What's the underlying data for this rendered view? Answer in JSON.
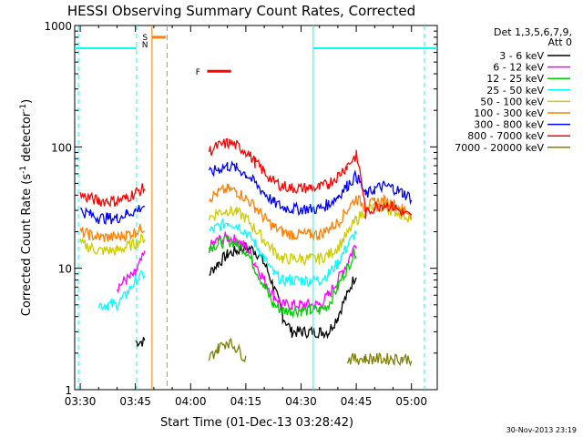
{
  "chart_data": {
    "type": "line",
    "title": "HESSI Observing Summary Count Rates, Corrected",
    "xlabel": "Start Time (01-Dec-13 03:28:42)",
    "ylabel_main": "Corrected Count Rate (s",
    "ylabel_sup1": "-1",
    "ylabel_mid": " detector",
    "ylabel_sup2": "-1",
    "ylabel_end": ")",
    "y_scale": "log",
    "ylim": [
      1,
      1000
    ],
    "xlim_minutes": [
      -1.5,
      97
    ],
    "x_tick_labels": [
      "03:30",
      "03:45",
      "04:00",
      "04:15",
      "04:30",
      "04:45",
      "05:00"
    ],
    "y_tick_labels": [
      "1",
      "10",
      "100",
      "1000"
    ],
    "legend_header": [
      "Det 1,3,5,6,7,9,",
      "Att 0"
    ],
    "legend_placement": "right",
    "timestamp": "30-Nov-2013 23:19",
    "markers": {
      "saa_letters": [
        "S",
        "N"
      ],
      "flare_letter": "F"
    },
    "series": [
      {
        "name": "3 - 6 keV",
        "color": "#000000",
        "values": [
          0,
          0,
          0,
          0,
          0,
          0,
          2.5,
          2.5,
          0,
          0,
          0,
          0,
          0,
          0,
          9,
          11,
          13,
          14,
          15,
          14,
          11,
          7,
          4,
          3,
          3,
          3,
          3,
          3,
          4,
          6,
          9,
          0,
          0,
          0,
          0,
          0,
          0
        ]
      },
      {
        "name": "6 - 12 keV",
        "color": "#ff00ff",
        "values": [
          0,
          0,
          0,
          0,
          7,
          8,
          9,
          13,
          0,
          0,
          0,
          0,
          0,
          0,
          15,
          17,
          18,
          17,
          15,
          11,
          8,
          6,
          5,
          5,
          5,
          5,
          5,
          6,
          8,
          11,
          16,
          0,
          0,
          0,
          0,
          0,
          0
        ]
      },
      {
        "name": "12 - 25 keV",
        "color": "#00cc00",
        "values": [
          0,
          0,
          0,
          0,
          0,
          0,
          0,
          0,
          0,
          0,
          0,
          0,
          0,
          0,
          15,
          16,
          17,
          16,
          14,
          10,
          7,
          5,
          4.5,
          4.5,
          4.5,
          4.5,
          4.5,
          5,
          7,
          10,
          14,
          0,
          0,
          0,
          0,
          0,
          0
        ]
      },
      {
        "name": "25 - 50 keV",
        "color": "#00ffff",
        "values": [
          0,
          0,
          5,
          5,
          5,
          6,
          8,
          9,
          0,
          0,
          0,
          0,
          0,
          0,
          20,
          22,
          24,
          23,
          20,
          16,
          12,
          9,
          8,
          8,
          8,
          8,
          8,
          9,
          11,
          15,
          20,
          0,
          0,
          0,
          0,
          0,
          0
        ]
      },
      {
        "name": "50 - 100 keV",
        "color": "#cccc00",
        "values": [
          16,
          15,
          14,
          14,
          14,
          15,
          16,
          18,
          0,
          0,
          0,
          0,
          0,
          0,
          26,
          29,
          30,
          29,
          26,
          21,
          17,
          14,
          12,
          12,
          12,
          12,
          12,
          13,
          15,
          19,
          25,
          30,
          32,
          32,
          30,
          28,
          26
        ]
      },
      {
        "name": "100 - 300 keV",
        "color": "#ff8000",
        "values": [
          20,
          19,
          18,
          18,
          18,
          19,
          20,
          22,
          0,
          0,
          0,
          0,
          0,
          0,
          38,
          42,
          45,
          43,
          38,
          32,
          26,
          22,
          20,
          19,
          19,
          19,
          19,
          21,
          24,
          30,
          38,
          32,
          35,
          36,
          34,
          31,
          28
        ]
      },
      {
        "name": "300 - 800 keV",
        "color": "#0000ff",
        "values": [
          30,
          28,
          26,
          26,
          26,
          28,
          30,
          33,
          0,
          0,
          0,
          0,
          0,
          0,
          60,
          66,
          70,
          67,
          60,
          50,
          42,
          35,
          32,
          31,
          31,
          31,
          31,
          34,
          39,
          48,
          58,
          40,
          45,
          48,
          46,
          42,
          38
        ]
      },
      {
        "name": "800 - 7000 keV",
        "color": "#ff0000",
        "values": [
          40,
          38,
          36,
          36,
          36,
          38,
          42,
          46,
          0,
          0,
          0,
          0,
          0,
          0,
          92,
          102,
          108,
          103,
          92,
          75,
          62,
          52,
          48,
          46,
          46,
          46,
          46,
          50,
          58,
          70,
          85,
          28,
          32,
          34,
          32,
          29,
          26
        ]
      },
      {
        "name": "7000 - 20000 keV",
        "color": "#808000",
        "values": [
          0,
          0,
          0,
          0,
          0,
          0,
          0,
          0,
          0,
          0,
          0,
          0,
          0,
          0,
          1.8,
          2.2,
          2.5,
          2.2,
          1.8,
          0,
          0,
          0,
          0,
          0,
          0,
          0,
          0,
          0,
          0,
          1.8,
          1.8,
          1.8,
          1.8,
          1.8,
          1.8,
          1.8,
          1.8
        ]
      }
    ]
  }
}
